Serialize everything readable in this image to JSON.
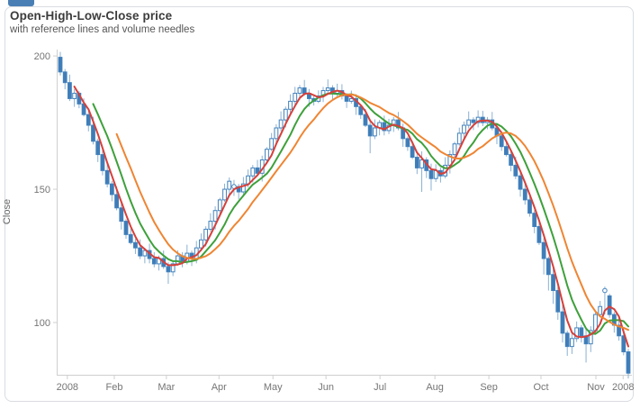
{
  "page": {
    "corner_tab_color": "#4a7fb5"
  },
  "chart_data": {
    "type": "candlestick",
    "title": "Open-High-Low-Close price",
    "subtitle": "with reference lines and volume needles",
    "ylabel": "Close",
    "y_ticks": [
      100,
      150,
      200
    ],
    "ylim": [
      80.4,
      202.4
    ],
    "grid": false,
    "legend": "none",
    "x_axis_labels": [
      {
        "label": "2008",
        "i": 1.5
      },
      {
        "label": "Feb",
        "i": 11.5
      },
      {
        "label": "Mar",
        "i": 22.6
      },
      {
        "label": "Apr",
        "i": 33.8
      },
      {
        "label": "May",
        "i": 45.3
      },
      {
        "label": "Jun",
        "i": 56.6
      },
      {
        "label": "Jul",
        "i": 68.1
      },
      {
        "label": "Aug",
        "i": 79.8
      },
      {
        "label": "Sep",
        "i": 91.3
      },
      {
        "label": "Oct",
        "i": 102.4
      },
      {
        "label": "Nov",
        "i": 114.1
      },
      {
        "label": "2008",
        "i": 119.9
      }
    ],
    "moving_averages": [
      {
        "name": "ma-line-medium",
        "window": 8,
        "color": "#3ea03b"
      },
      {
        "name": "ma-line-short",
        "window": 4,
        "color": "#d6403a"
      },
      {
        "name": "ma-line-long",
        "window": 13,
        "color": "#ef8532"
      }
    ],
    "colors": {
      "candle_down": "#3f7cb8",
      "candle_up_fill": "#ffffff",
      "candle_stroke": "#4181bb",
      "wick": "#8ab1d3",
      "axis": "#cfcfcf",
      "tick_label": "#757575",
      "ylabel_color": "#666666"
    },
    "candles": [
      [
        199.5,
        201.5,
        192.7,
        194
      ],
      [
        194,
        195.1,
        187.5,
        190
      ],
      [
        190,
        193,
        183.1,
        184
      ],
      [
        184,
        187.6,
        180.9,
        186
      ],
      [
        186,
        186.8,
        180.4,
        182
      ],
      [
        182,
        184.1,
        177.3,
        178
      ],
      [
        178,
        179.4,
        171.7,
        174
      ],
      [
        174,
        177.2,
        166.8,
        168
      ],
      [
        168,
        169,
        160.2,
        163
      ],
      [
        163,
        165.6,
        155.2,
        157
      ],
      [
        157,
        159.4,
        150.7,
        152
      ],
      [
        152,
        153.1,
        145.5,
        148
      ],
      [
        148,
        151,
        142.1,
        143
      ],
      [
        143,
        144.6,
        134.9,
        138
      ],
      [
        138,
        138.8,
        131.4,
        133
      ],
      [
        133,
        135.1,
        129.3,
        130
      ],
      [
        130,
        131.4,
        125.7,
        128
      ],
      [
        128,
        131.2,
        123.8,
        125
      ],
      [
        125,
        128,
        122.2,
        127
      ],
      [
        127,
        129.6,
        122.2,
        124
      ],
      [
        124,
        126.4,
        120.7,
        122
      ],
      [
        122,
        125.1,
        119.5,
        124
      ],
      [
        124,
        127,
        120.1,
        121
      ],
      [
        121,
        122.6,
        114.5,
        119
      ],
      [
        119,
        122.8,
        117.4,
        122
      ],
      [
        122,
        127.1,
        121.3,
        125
      ],
      [
        125,
        126.4,
        120.7,
        123
      ],
      [
        123,
        129.2,
        121.8,
        126
      ],
      [
        126,
        127,
        121.2,
        124
      ],
      [
        124,
        130.6,
        122.2,
        128
      ],
      [
        128,
        133.4,
        126.7,
        131
      ],
      [
        131,
        136.1,
        128.5,
        135
      ],
      [
        135,
        141,
        134.1,
        138
      ],
      [
        138,
        143.6,
        134.9,
        142
      ],
      [
        142,
        146.8,
        140.4,
        146
      ],
      [
        146,
        152.1,
        145.3,
        150
      ],
      [
        150,
        154.4,
        147.7,
        153
      ],
      [
        151,
        153.5,
        147.5,
        151
      ],
      [
        151,
        152,
        146.2,
        149
      ],
      [
        149,
        154.6,
        147.2,
        152
      ],
      [
        152,
        157.4,
        150.7,
        155
      ],
      [
        155,
        159.1,
        152.5,
        158
      ],
      [
        158,
        161,
        155.1,
        156
      ],
      [
        156,
        162.6,
        152.9,
        161
      ],
      [
        161,
        165.8,
        159.4,
        165
      ],
      [
        165,
        171.1,
        164.3,
        169
      ],
      [
        169,
        174.4,
        166.7,
        173
      ],
      [
        173,
        179.2,
        171.8,
        176
      ],
      [
        176,
        181,
        173.2,
        180
      ],
      [
        180,
        185.6,
        178.2,
        183
      ],
      [
        183,
        188.4,
        181.7,
        186
      ],
      [
        186,
        189.1,
        183.5,
        188
      ],
      [
        188,
        191,
        185.1,
        186
      ],
      [
        186,
        187.6,
        180.9,
        184
      ],
      [
        184,
        184.8,
        181.4,
        183
      ],
      [
        183,
        187.1,
        182.3,
        185
      ],
      [
        185,
        188.4,
        182.7,
        187
      ],
      [
        187,
        191.2,
        185.8,
        188
      ],
      [
        188,
        189,
        183.2,
        186
      ],
      [
        186,
        189.6,
        184.2,
        187
      ],
      [
        187,
        189.4,
        183.7,
        185
      ],
      [
        185,
        186.1,
        180.5,
        183
      ],
      [
        183,
        187,
        182.1,
        184
      ],
      [
        184,
        185.6,
        177.9,
        181
      ],
      [
        181,
        181.8,
        176.4,
        178
      ],
      [
        178,
        180.1,
        173.3,
        174
      ],
      [
        174,
        175.4,
        163.5,
        170
      ],
      [
        170,
        176.2,
        168.8,
        173
      ],
      [
        173,
        176,
        170.2,
        175
      ],
      [
        175,
        177.6,
        170.2,
        172
      ],
      [
        172,
        176.4,
        170.7,
        174
      ],
      [
        174,
        177.1,
        171.5,
        176
      ],
      [
        176,
        179,
        172.1,
        173
      ],
      [
        173,
        174.6,
        165.9,
        169
      ],
      [
        169,
        169.8,
        164.4,
        166
      ],
      [
        166,
        168.1,
        161.3,
        162
      ],
      [
        162,
        163.4,
        155.7,
        158
      ],
      [
        158,
        164.2,
        149,
        161
      ],
      [
        161,
        162,
        154.2,
        157
      ],
      [
        157,
        159.6,
        149.5,
        154
      ],
      [
        154,
        159.4,
        152.7,
        157
      ],
      [
        157,
        158.1,
        152.5,
        155
      ],
      [
        155,
        162,
        154.1,
        159
      ],
      [
        159,
        164.6,
        155.9,
        163
      ],
      [
        163,
        167.8,
        161.4,
        167
      ],
      [
        167,
        173.1,
        166.3,
        171
      ],
      [
        171,
        175.4,
        168.7,
        174
      ],
      [
        174,
        179.2,
        172.8,
        176
      ],
      [
        176,
        177,
        172.2,
        175
      ],
      [
        175,
        179.6,
        173.2,
        177
      ],
      [
        177,
        179.4,
        173.7,
        175
      ],
      [
        175,
        177.1,
        172.5,
        176
      ],
      [
        176,
        179,
        172.1,
        173
      ],
      [
        173,
        174.6,
        166.9,
        170
      ],
      [
        170,
        170.8,
        164.4,
        166
      ],
      [
        166,
        168.1,
        162.3,
        163
      ],
      [
        163,
        164.4,
        156.7,
        159
      ],
      [
        159,
        162.2,
        153.8,
        155
      ],
      [
        155,
        156,
        147.2,
        150
      ],
      [
        150,
        152.6,
        144.2,
        146
      ],
      [
        146,
        148.4,
        139.7,
        141
      ],
      [
        141,
        142.1,
        133.5,
        136
      ],
      [
        136,
        139,
        129.1,
        130
      ],
      [
        130,
        131.6,
        118,
        124
      ],
      [
        124,
        124.8,
        112,
        118
      ],
      [
        118,
        120.1,
        107,
        112
      ],
      [
        112,
        113.4,
        101,
        104
      ],
      [
        104,
        107.2,
        92.5,
        96
      ],
      [
        96,
        97,
        87.5,
        91
      ],
      [
        91,
        96.6,
        88.2,
        94
      ],
      [
        94,
        100.4,
        92.7,
        98
      ],
      [
        98,
        99.1,
        92.5,
        95
      ],
      [
        95,
        98,
        85,
        92
      ],
      [
        92,
        98.6,
        88.9,
        97
      ],
      [
        97,
        103.8,
        95.4,
        103
      ],
      [
        103,
        108.1,
        102.3,
        106
      ],
      [
        112,
        113.5,
        103,
        112
      ],
      [
        110,
        110.8,
        101.8,
        103
      ],
      [
        103,
        104,
        96.2,
        99
      ],
      [
        99,
        101.6,
        93.2,
        95
      ],
      [
        95,
        97.4,
        87.7,
        89
      ],
      [
        89,
        90.1,
        79,
        81
      ]
    ]
  }
}
